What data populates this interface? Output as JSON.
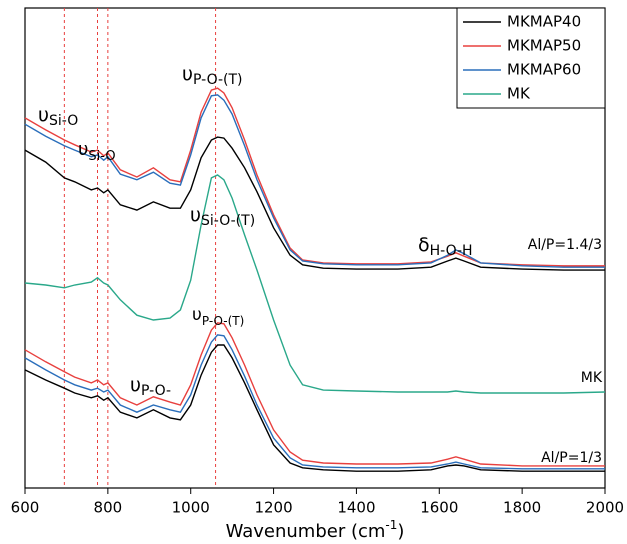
{
  "chart_data": {
    "type": "line",
    "x": [
      600,
      650,
      695,
      720,
      760,
      775,
      790,
      800,
      830,
      870,
      910,
      950,
      975,
      1000,
      1025,
      1050,
      1065,
      1080,
      1100,
      1130,
      1160,
      1200,
      1240,
      1270,
      1320,
      1400,
      1500,
      1580,
      1620,
      1640,
      1660,
      1700,
      1800,
      1900,
      2000
    ],
    "groups": [
      {
        "label": "Al/P=1.4/3",
        "series": [
          {
            "name": "MKMAP40",
            "color": "#000000",
            "values": [
              70.4,
              67.9,
              64.6,
              63.8,
              62.1,
              62.5,
              61.5,
              62.1,
              59.0,
              57.9,
              59.6,
              58.3,
              58.3,
              62.1,
              68.8,
              72.5,
              73.1,
              72.9,
              70.8,
              66.7,
              61.7,
              54.2,
              48.5,
              46.5,
              45.8,
              45.6,
              45.6,
              46.0,
              47.3,
              47.9,
              47.3,
              46.0,
              45.6,
              45.4,
              45.4
            ]
          },
          {
            "name": "MKMAP50",
            "color": "#e8403e",
            "values": [
              77.1,
              74.6,
              72.5,
              71.5,
              70.0,
              70.4,
              69.2,
              69.8,
              66.3,
              64.8,
              66.7,
              64.2,
              63.8,
              70.4,
              78.3,
              82.9,
              83.3,
              82.3,
              79.2,
              72.5,
              65.2,
              56.9,
              50.0,
              47.5,
              46.9,
              46.7,
              46.7,
              47.1,
              48.3,
              49.0,
              48.3,
              46.9,
              46.5,
              46.3,
              46.3
            ]
          },
          {
            "name": "MKMAP60",
            "color": "#2a6ebb",
            "values": [
              75.8,
              73.3,
              71.3,
              70.4,
              69.0,
              69.4,
              68.3,
              69.0,
              65.4,
              64.2,
              65.8,
              63.5,
              63.1,
              69.4,
              77.1,
              81.7,
              81.9,
              80.8,
              77.9,
              71.3,
              64.2,
              56.3,
              49.6,
              47.3,
              46.7,
              46.5,
              46.5,
              46.9,
              48.5,
              49.6,
              48.8,
              46.9,
              46.3,
              46.0,
              46.0
            ]
          }
        ]
      },
      {
        "label": "MK",
        "series": [
          {
            "name": "MK",
            "color": "#2aa88a",
            "values": [
              42.7,
              42.3,
              41.7,
              42.3,
              42.9,
              43.8,
              42.7,
              42.3,
              39.2,
              36.0,
              35.0,
              35.4,
              37.1,
              43.3,
              54.8,
              64.6,
              65.2,
              64.2,
              60.4,
              52.7,
              45.4,
              35.0,
              25.6,
              21.5,
              20.4,
              20.2,
              20.0,
              20.0,
              20.0,
              20.2,
              20.0,
              19.8,
              19.8,
              19.8,
              20.0
            ]
          }
        ]
      },
      {
        "label": "Al/P=1/3",
        "series": [
          {
            "name": "MKMAP40",
            "color": "#000000",
            "values": [
              24.6,
              22.5,
              20.8,
              19.8,
              18.8,
              19.2,
              18.3,
              18.8,
              15.8,
              14.6,
              16.3,
              14.6,
              14.2,
              17.3,
              23.5,
              28.3,
              29.8,
              29.8,
              27.1,
              21.9,
              16.3,
              9.0,
              5.2,
              4.2,
              3.8,
              3.5,
              3.5,
              3.8,
              4.6,
              4.8,
              4.6,
              3.8,
              3.5,
              3.5,
              3.5
            ]
          },
          {
            "name": "MKMAP50",
            "color": "#e8403e",
            "values": [
              28.8,
              26.3,
              24.2,
              23.1,
              21.9,
              22.5,
              21.5,
              21.9,
              18.8,
              17.3,
              19.0,
              17.9,
              17.3,
              21.5,
              27.7,
              32.9,
              34.4,
              34.2,
              31.3,
              25.6,
              19.4,
              12.1,
              7.5,
              5.8,
              5.2,
              5.0,
              5.0,
              5.2,
              6.0,
              6.5,
              6.0,
              5.0,
              4.6,
              4.6,
              4.6
            ]
          },
          {
            "name": "MKMAP60",
            "color": "#2a6ebb",
            "values": [
              27.1,
              24.6,
              22.5,
              21.5,
              20.4,
              20.8,
              20.0,
              20.4,
              17.3,
              15.8,
              17.3,
              16.3,
              15.8,
              19.4,
              25.6,
              30.4,
              31.9,
              31.7,
              28.8,
              23.3,
              17.3,
              10.4,
              6.3,
              4.8,
              4.4,
              4.2,
              4.2,
              4.4,
              5.0,
              5.4,
              5.0,
              4.2,
              4.0,
              4.0,
              4.0
            ]
          }
        ]
      }
    ],
    "xlim": [
      600,
      2000
    ],
    "xticks": [
      600,
      800,
      1000,
      1200,
      1400,
      1600,
      1800,
      2000
    ],
    "ylim": [
      0,
      100
    ],
    "xlabel": {
      "text": "Wavenumber (cm",
      "sup": "-1",
      "tail": ")"
    },
    "vlines": [
      695,
      775,
      800,
      1060
    ],
    "vline_color": "#e8403e",
    "annotations": [
      {
        "symbol": "υ",
        "sub": "Si-O"
      },
      {
        "symbol": "υ",
        "sub": "Si-O"
      },
      {
        "symbol": "υ",
        "sub": "P-O-(T)"
      },
      {
        "symbol": "υ",
        "sub": "Si-O-(T)"
      },
      {
        "symbol": "δ",
        "sub": "H-O-H"
      },
      {
        "symbol": "υ",
        "sub": "P-O-(T)"
      },
      {
        "symbol": "υ",
        "sub": "P-O-"
      }
    ],
    "legend": "upper right"
  }
}
